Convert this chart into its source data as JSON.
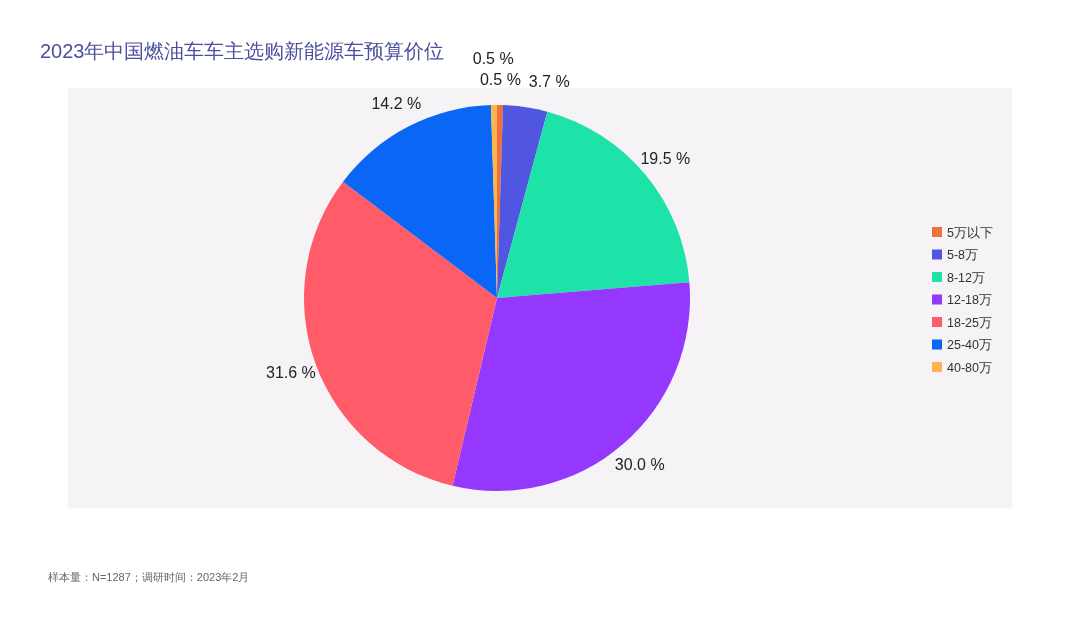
{
  "chart_data": {
    "type": "pie",
    "title": "2023年中国燃油车车主选购新能源车预算价位",
    "categories": [
      "5万以下",
      "5-8万",
      "8-12万",
      "12-18万",
      "18-25万",
      "25-40万",
      "40-80万"
    ],
    "values": [
      0.5,
      3.7,
      19.5,
      30.0,
      31.6,
      14.2,
      0.5
    ],
    "colors": [
      "#f0703a",
      "#5156e0",
      "#1de3a8",
      "#9338fc",
      "#ff5b69",
      "#0a66f5",
      "#fdb34e"
    ],
    "value_labels": [
      "0.5 %",
      "3.7 %",
      "19.5 %",
      "30.0 %",
      "31.6 %",
      "14.2 %",
      "0.5 %"
    ],
    "legend": "right",
    "annotations": [
      "样本量：N=1287；调研时间：2023年2月"
    ]
  }
}
